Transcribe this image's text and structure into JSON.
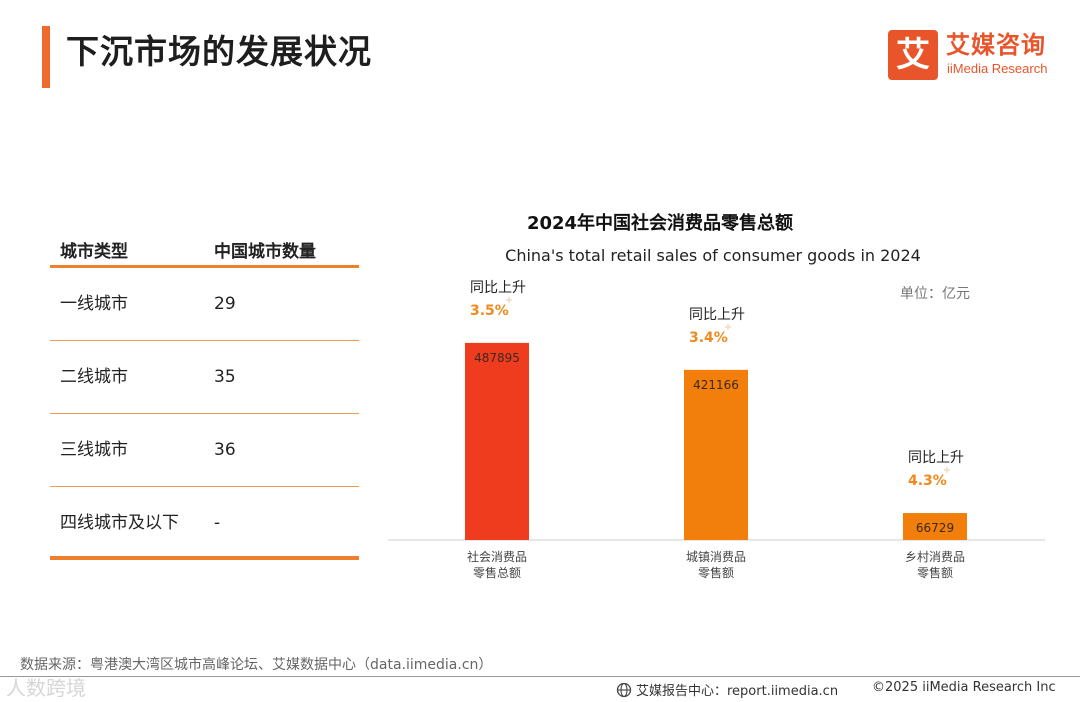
{
  "header": {
    "title": "下沉市场的发展状况",
    "logo_mark": "艾",
    "logo_cn": "艾媒咨询",
    "logo_en": "iiMedia Research",
    "accent_color": "#ee6a2e"
  },
  "table": {
    "headers": [
      "城市类型",
      "中国城市数量"
    ],
    "rows": [
      {
        "type": "一线城市",
        "count": "29"
      },
      {
        "type": "二线城市",
        "count": "35"
      },
      {
        "type": "三线城市",
        "count": "36"
      },
      {
        "type": "四线城市及以下",
        "count": "-"
      }
    ]
  },
  "chart_data": {
    "type": "bar",
    "title": "2024年中国社会消费品零售总额",
    "subtitle": "China's total retail sales of consumer goods in 2024",
    "unit": "单位：亿元",
    "categories": [
      [
        "社会消费品",
        "零售总额"
      ],
      [
        "城镇消费品",
        "零售额"
      ],
      [
        "乡村消费品",
        "零售额"
      ]
    ],
    "values": [
      487895,
      421166,
      66729
    ],
    "value_labels": [
      "487895",
      "421166",
      "66729"
    ],
    "growth_label": "同比上升",
    "growth": [
      "3.5%",
      "3.4%",
      "4.3%"
    ],
    "colors": [
      "#f03c1e",
      "#f27e0c",
      "#f27e0c"
    ],
    "growth_color": "#f08a1c",
    "ylim": [
      0,
      500000
    ],
    "grid": false,
    "legend": "none"
  },
  "footer": {
    "source": "数据来源：粤港澳大湾区城市高峰论坛、艾媒数据中心（data.iimedia.cn）",
    "report": "艾媒报告中心：report.iimedia.cn",
    "copyright": "©2025  iiMedia Research  Inc",
    "watermark": "人数跨境"
  }
}
